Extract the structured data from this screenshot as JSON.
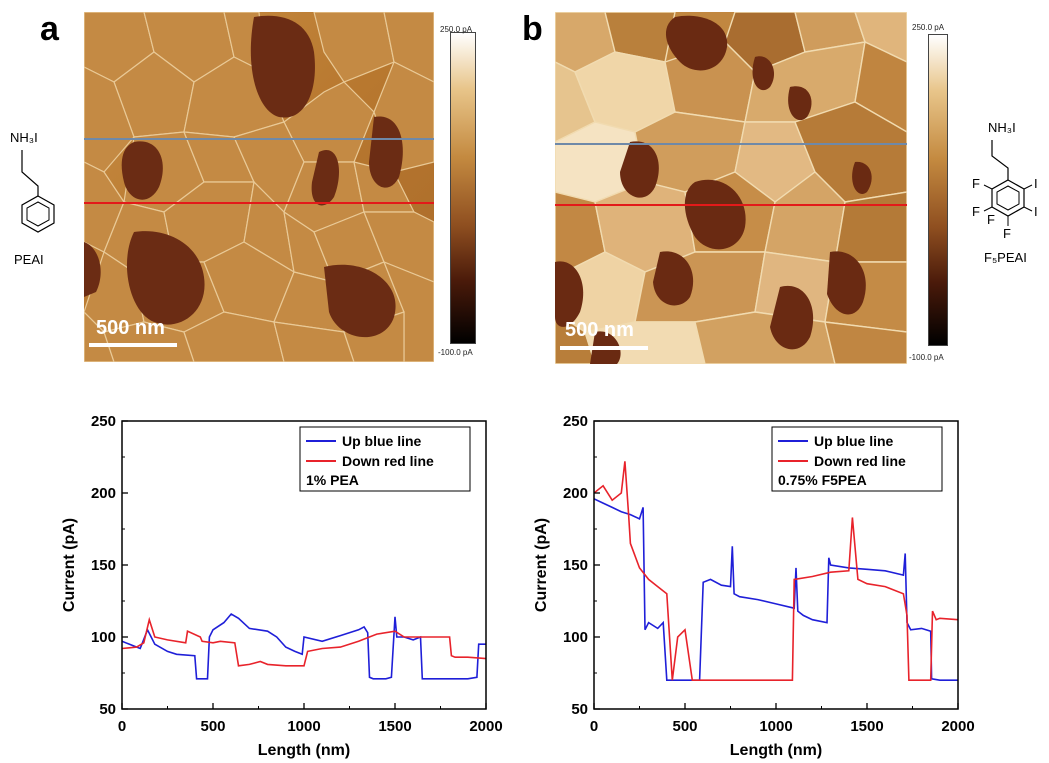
{
  "panels": [
    {
      "label": "a",
      "scale_bar": "500 nm",
      "colorbar": {
        "max": "250.0 pA",
        "min": "-100.0 pA"
      },
      "molecule": {
        "group": "NH₃I",
        "name": "PEAI"
      }
    },
    {
      "label": "b",
      "scale_bar": "500 nm",
      "colorbar": {
        "max": "250.0 pA",
        "min": "-100.0 pA"
      },
      "molecule": {
        "group": "NH₃I",
        "name": "F₅PEAI",
        "f_atoms": [
          "F",
          "F",
          "F",
          "F"
        ],
        "i_atoms": [
          "I",
          "I"
        ]
      }
    }
  ],
  "colors": {
    "blue_line": "#1f1fd8",
    "red_line": "#e8232b",
    "afm_light": "#f4e2c0",
    "afm_dark": "#5c2412"
  },
  "chart_data": [
    {
      "type": "line",
      "xlabel": "Length (nm)",
      "ylabel": "Current (pA)",
      "xlim": [
        0,
        2000
      ],
      "ylim": [
        50,
        250
      ],
      "xticks": [
        0,
        500,
        1000,
        1500,
        2000
      ],
      "yticks": [
        50,
        100,
        150,
        200,
        250
      ],
      "legend_position": "top-right",
      "annotation": "1% PEA",
      "series": [
        {
          "name": "Up blue line",
          "color": "#1f1fd8",
          "x": [
            0,
            100,
            140,
            180,
            250,
            300,
            400,
            410,
            470,
            480,
            500,
            560,
            600,
            640,
            700,
            800,
            850,
            900,
            950,
            990,
            1000,
            1100,
            1200,
            1300,
            1330,
            1350,
            1360,
            1380,
            1450,
            1480,
            1500,
            1510,
            1550,
            1600,
            1640,
            1650,
            1700,
            1800,
            1900,
            1950,
            1960,
            2000
          ],
          "y": [
            97,
            92,
            105,
            95,
            90,
            88,
            87,
            71,
            71,
            100,
            105,
            110,
            116,
            113,
            106,
            104,
            100,
            93,
            90,
            88,
            100,
            97,
            101,
            105,
            107,
            103,
            72,
            71,
            71,
            72,
            114,
            100,
            100,
            98,
            100,
            71,
            71,
            71,
            71,
            72,
            95,
            95
          ]
        },
        {
          "name": "Down red line",
          "color": "#e8232b",
          "x": [
            0,
            80,
            120,
            150,
            180,
            250,
            350,
            360,
            430,
            440,
            500,
            540,
            620,
            640,
            700,
            760,
            800,
            900,
            1000,
            1020,
            1100,
            1200,
            1300,
            1400,
            1500,
            1550,
            1600,
            1700,
            1790,
            1800,
            1810,
            1830,
            1900,
            2000
          ],
          "y": [
            92,
            93,
            96,
            112,
            100,
            98,
            96,
            104,
            100,
            97,
            96,
            97,
            96,
            80,
            81,
            83,
            81,
            80,
            80,
            90,
            92,
            93,
            97,
            102,
            104,
            100,
            100,
            100,
            100,
            100,
            87,
            86,
            86,
            85
          ]
        }
      ]
    },
    {
      "type": "line",
      "xlabel": "Length (nm)",
      "ylabel": "Current (pA)",
      "xlim": [
        0,
        2000
      ],
      "ylim": [
        50,
        250
      ],
      "xticks": [
        0,
        500,
        1000,
        1500,
        2000
      ],
      "yticks": [
        50,
        100,
        150,
        200,
        250
      ],
      "legend_position": "top-right",
      "annotation": "0.75% F5PEA",
      "series": [
        {
          "name": "Up blue line",
          "color": "#1f1fd8",
          "x": [
            0,
            50,
            100,
            150,
            200,
            250,
            270,
            280,
            300,
            350,
            380,
            400,
            500,
            560,
            580,
            600,
            640,
            700,
            750,
            760,
            770,
            800,
            900,
            1000,
            1100,
            1110,
            1120,
            1150,
            1200,
            1280,
            1290,
            1300,
            1400,
            1500,
            1600,
            1700,
            1710,
            1720,
            1740,
            1800,
            1850,
            1855,
            1900,
            2000
          ],
          "y": [
            196,
            193,
            190,
            187,
            185,
            182,
            190,
            105,
            110,
            106,
            110,
            70,
            70,
            70,
            70,
            138,
            140,
            136,
            135,
            163,
            130,
            128,
            126,
            123,
            120,
            148,
            118,
            115,
            112,
            110,
            155,
            150,
            148,
            147,
            146,
            143,
            158,
            110,
            105,
            106,
            104,
            71,
            70,
            70
          ]
        },
        {
          "name": "Down red line",
          "color": "#e8232b",
          "x": [
            0,
            50,
            100,
            150,
            170,
            190,
            200,
            250,
            300,
            350,
            400,
            430,
            460,
            500,
            540,
            560,
            600,
            650,
            700,
            780,
            790,
            800,
            900,
            1000,
            1090,
            1100,
            1200,
            1300,
            1400,
            1420,
            1450,
            1500,
            1600,
            1700,
            1720,
            1730,
            1750,
            1800,
            1850,
            1860,
            1880,
            1900,
            2000
          ],
          "y": [
            200,
            205,
            195,
            200,
            222,
            185,
            165,
            148,
            140,
            135,
            130,
            70,
            100,
            105,
            70,
            70,
            70,
            70,
            70,
            70,
            70,
            70,
            70,
            70,
            70,
            140,
            142,
            145,
            146,
            183,
            140,
            137,
            135,
            130,
            115,
            70,
            70,
            70,
            70,
            118,
            112,
            113,
            112
          ]
        }
      ]
    }
  ]
}
